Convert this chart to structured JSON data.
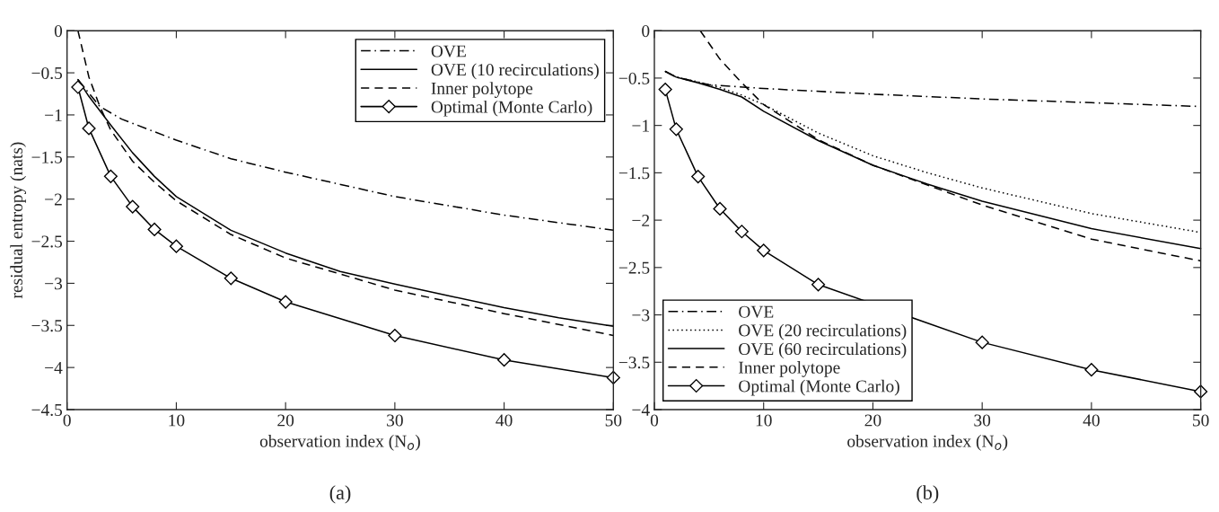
{
  "chart_data": [
    {
      "type": "line",
      "title": "(a)",
      "xlabel": "observation index (N$_{o}$)",
      "ylabel": "residual entropy (nats)",
      "xlim": [
        0,
        50
      ],
      "ylim": [
        -4.5,
        0
      ],
      "xticks": [
        0,
        10,
        20,
        30,
        40,
        50
      ],
      "yticks": [
        -4.5,
        -4,
        -3.5,
        -3,
        -2.5,
        -2,
        -1.5,
        -1,
        -0.5,
        0
      ],
      "grid": false,
      "legend": "top right",
      "series": [
        {
          "name": "OVE",
          "color": "#000000",
          "line_style": "dashdot",
          "marker": "none",
          "x": [
            1,
            3,
            5,
            10,
            15,
            20,
            30,
            40,
            50
          ],
          "values": [
            -0.58,
            -0.9,
            -1.05,
            -1.3,
            -1.52,
            -1.68,
            -1.97,
            -2.19,
            -2.37
          ]
        },
        {
          "name": "OVE (10 recirculations)",
          "color": "#000000",
          "line_style": "solid",
          "marker": "none",
          "x": [
            1,
            2,
            4,
            6,
            8,
            10,
            15,
            20,
            25,
            30,
            35,
            40,
            45,
            50
          ],
          "values": [
            -0.58,
            -0.78,
            -1.12,
            -1.45,
            -1.73,
            -1.97,
            -2.37,
            -2.64,
            -2.86,
            -3.01,
            -3.15,
            -3.29,
            -3.41,
            -3.51
          ]
        },
        {
          "name": "Inner polytope",
          "color": "#000000",
          "line_style": "dashed",
          "marker": "none",
          "x": [
            1,
            2,
            3,
            4,
            6,
            8,
            10,
            15,
            20,
            30,
            40,
            50
          ],
          "values": [
            0.0,
            -0.55,
            -0.9,
            -1.18,
            -1.55,
            -1.8,
            -2.02,
            -2.42,
            -2.7,
            -3.08,
            -3.36,
            -3.62
          ]
        },
        {
          "name": "Optimal (Monte Carlo)",
          "color": "#000000",
          "line_style": "solid",
          "marker": "diamond",
          "x": [
            1,
            2,
            4,
            6,
            8,
            10,
            15,
            20,
            30,
            40,
            50
          ],
          "values": [
            -0.67,
            -1.16,
            -1.73,
            -2.09,
            -2.36,
            -2.56,
            -2.94,
            -3.22,
            -3.62,
            -3.91,
            -4.12
          ]
        }
      ]
    },
    {
      "type": "line",
      "title": "(b)",
      "xlabel": "observation index (N$_{o}$)",
      "xlim": [
        0,
        50
      ],
      "ylim": [
        -4,
        0
      ],
      "xticks": [
        0,
        10,
        20,
        30,
        40,
        50
      ],
      "yticks": [
        -4,
        -3.5,
        -3,
        -2.5,
        -2,
        -1.5,
        -1,
        -0.5,
        0
      ],
      "grid": false,
      "legend": "bottom left",
      "series": [
        {
          "name": "OVE",
          "color": "#000000",
          "line_style": "dashdot",
          "marker": "none",
          "x": [
            1,
            2,
            5,
            10,
            20,
            30,
            40,
            50
          ],
          "values": [
            -0.43,
            -0.49,
            -0.57,
            -0.61,
            -0.67,
            -0.72,
            -0.76,
            -0.8
          ]
        },
        {
          "name": "OVE (20 recirculations)",
          "color": "#000000",
          "line_style": "dotted",
          "marker": "none",
          "x": [
            1,
            2,
            4,
            6,
            8,
            10,
            15,
            20,
            25,
            30,
            40,
            50
          ],
          "values": [
            -0.43,
            -0.49,
            -0.54,
            -0.6,
            -0.68,
            -0.78,
            -1.08,
            -1.32,
            -1.5,
            -1.66,
            -1.93,
            -2.13
          ]
        },
        {
          "name": "OVE (60 recirculations)",
          "color": "#000000",
          "line_style": "solid",
          "marker": "none",
          "x": [
            1,
            2,
            4,
            6,
            8,
            10,
            15,
            20,
            25,
            30,
            40,
            50
          ],
          "values": [
            -0.43,
            -0.49,
            -0.55,
            -0.62,
            -0.7,
            -0.85,
            -1.16,
            -1.42,
            -1.62,
            -1.8,
            -2.09,
            -2.3
          ]
        },
        {
          "name": "Inner polytope",
          "color": "#000000",
          "line_style": "dashed",
          "marker": "none",
          "x": [
            4.2,
            6,
            8,
            10,
            15,
            20,
            25,
            30,
            40,
            50
          ],
          "values": [
            0.0,
            -0.3,
            -0.55,
            -0.78,
            -1.15,
            -1.42,
            -1.63,
            -1.84,
            -2.2,
            -2.43
          ]
        },
        {
          "name": "Optimal (Monte Carlo)",
          "color": "#000000",
          "line_style": "solid",
          "marker": "diamond",
          "x": [
            1,
            2,
            4,
            6,
            8,
            10,
            15,
            20,
            30,
            40,
            50
          ],
          "values": [
            -0.62,
            -1.04,
            -1.54,
            -1.88,
            -2.12,
            -2.32,
            -2.68,
            null,
            -3.29,
            -3.58,
            -3.81
          ]
        }
      ]
    }
  ]
}
